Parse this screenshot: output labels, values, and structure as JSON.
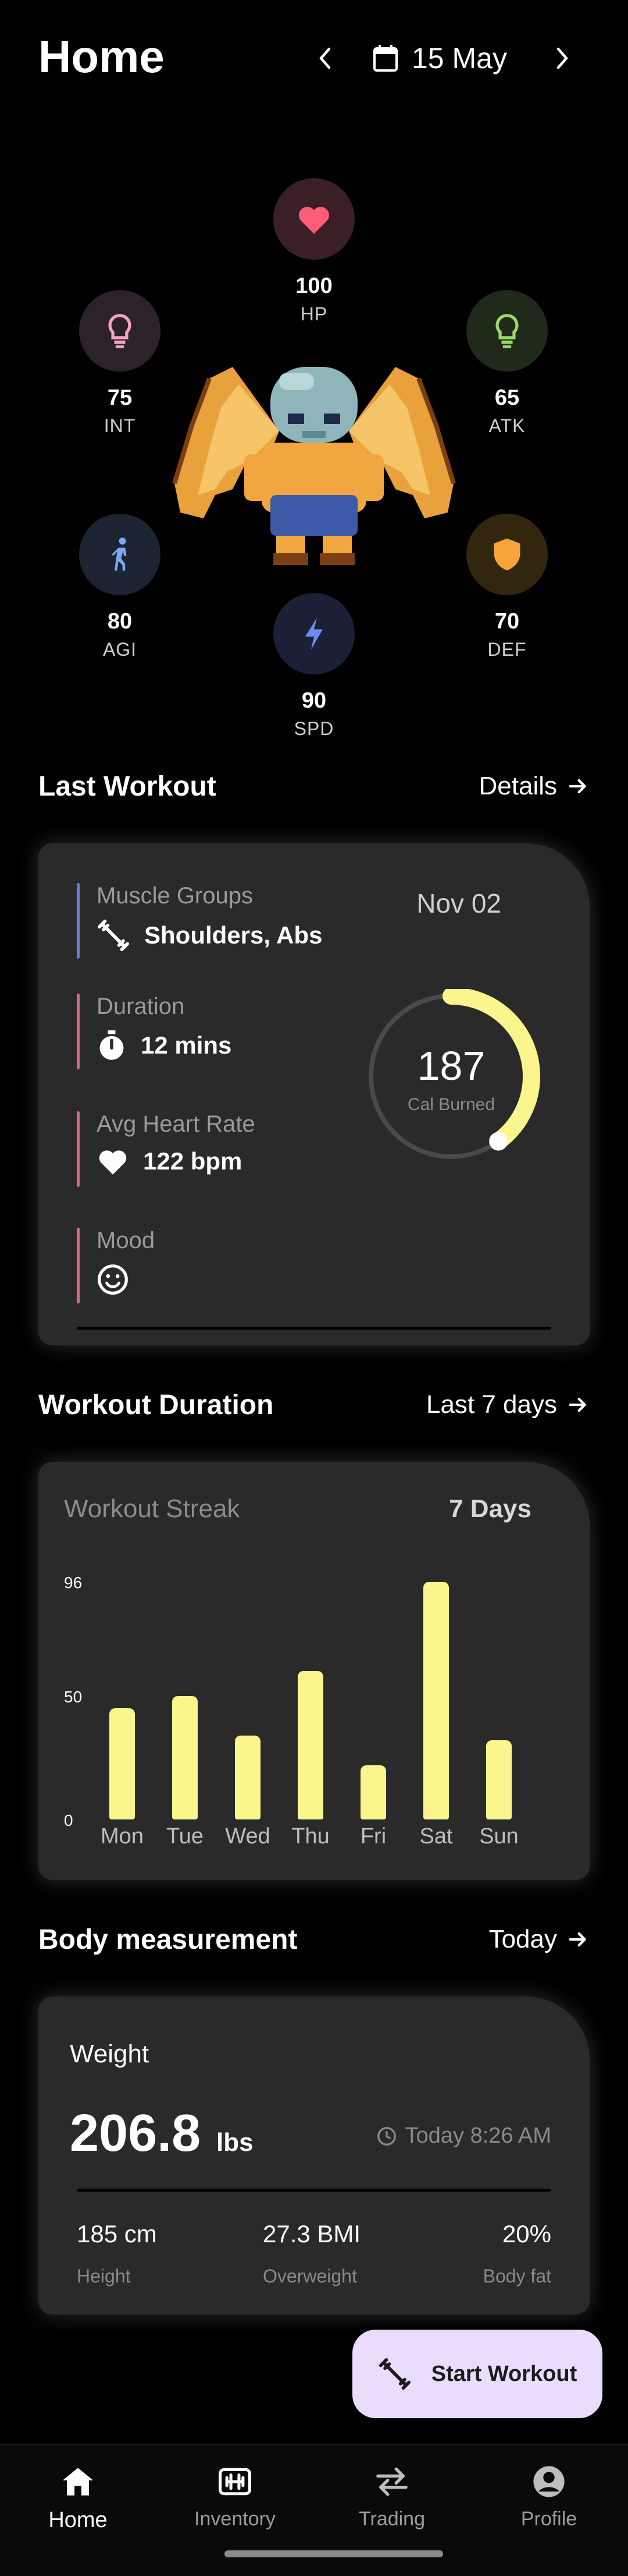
{
  "header": {
    "title": "Home",
    "date": "15 May"
  },
  "stats": [
    {
      "id": "hp",
      "value": "100",
      "label": "HP",
      "color": "#ff5c77",
      "bg": "#3a2026"
    },
    {
      "id": "int",
      "value": "75",
      "label": "INT",
      "color": "#f5a3c7",
      "bg": "#2c2229"
    },
    {
      "id": "atk",
      "value": "65",
      "label": "ATK",
      "color": "#9ad86a",
      "bg": "#1f2a1a"
    },
    {
      "id": "agi",
      "value": "80",
      "label": "AGI",
      "color": "#7aa8f5",
      "bg": "#1c2433"
    },
    {
      "id": "def",
      "value": "70",
      "label": "DEF",
      "color": "#f6a43a",
      "bg": "#33260f"
    },
    {
      "id": "spd",
      "value": "90",
      "label": "SPD",
      "color": "#6d8cf0",
      "bg": "#1b2036"
    }
  ],
  "last_workout": {
    "title": "Last Workout",
    "link": "Details",
    "date": "Nov 02",
    "muscle_label": "Muscle Groups",
    "muscle_value": "Shoulders, Abs",
    "duration_label": "Duration",
    "duration_value": "12 mins",
    "hr_label": "Avg Heart Rate",
    "hr_value": "122 bpm",
    "mood_label": "Mood",
    "calories": "187",
    "calories_label": "Cal Burned",
    "calories_progress": 0.4
  },
  "workout_duration": {
    "title": "Workout Duration",
    "link": "Last 7 days",
    "card_title": "Workout Streak",
    "streak": "7 Days"
  },
  "chart_data": {
    "type": "bar",
    "categories": [
      "Mon",
      "Tue",
      "Wed",
      "Thu",
      "Fri",
      "Sat",
      "Sun"
    ],
    "values": [
      45,
      50,
      34,
      60,
      22,
      96,
      32
    ],
    "yticks": [
      "96",
      "50",
      "0"
    ],
    "ylim": [
      0,
      96
    ],
    "title": "",
    "xlabel": "",
    "ylabel": "",
    "color": "#fbf58d"
  },
  "body_measurement": {
    "title": "Body measurement",
    "link": "Today",
    "weight_label": "Weight",
    "weight_value": "206.8",
    "weight_unit": "lbs",
    "timestamp": "Today 8:26 AM",
    "metrics": [
      {
        "value": "185 cm",
        "label": "Height"
      },
      {
        "value": "27.3 BMI",
        "label": "Overweight"
      },
      {
        "value": "20%",
        "label": "Body fat"
      }
    ]
  },
  "fab": {
    "label": "Start Workout"
  },
  "nav": [
    {
      "label": "Home",
      "icon": "home-icon"
    },
    {
      "label": "Inventory",
      "icon": "inventory-icon"
    },
    {
      "label": "Trading",
      "icon": "swap-icon"
    },
    {
      "label": "Profile",
      "icon": "account-icon"
    }
  ]
}
